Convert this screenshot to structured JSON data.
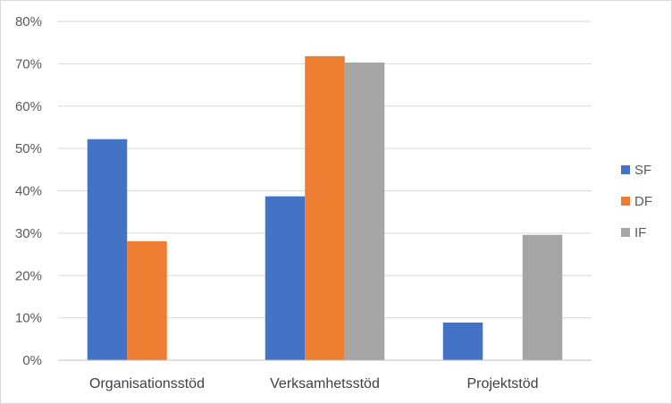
{
  "chart_data": {
    "type": "bar",
    "categories": [
      "Organisationsstöd",
      "Verksamhetsstöd",
      "Projektstöd"
    ],
    "series": [
      {
        "name": "SF",
        "color": "#4472C4",
        "values": [
          52.2,
          38.7,
          8.9
        ]
      },
      {
        "name": "DF",
        "color": "#ED7D31",
        "values": [
          28.1,
          71.8,
          0
        ]
      },
      {
        "name": "IF",
        "color": "#A5A5A5",
        "values": [
          0,
          70.3,
          29.6
        ]
      }
    ],
    "ylim": [
      0,
      80
    ],
    "yticks": [
      0,
      10,
      20,
      30,
      40,
      50,
      60,
      70,
      80
    ],
    "ytick_labels": [
      "0%",
      "10%",
      "20%",
      "30%",
      "40%",
      "50%",
      "60%",
      "70%",
      "80%"
    ],
    "grid": true,
    "legend_position": "right",
    "title": "",
    "xlabel": "",
    "ylabel": ""
  }
}
